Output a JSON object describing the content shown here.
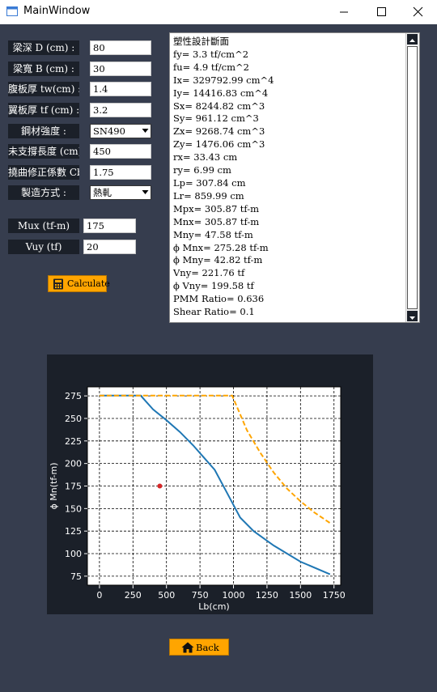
{
  "window": {
    "title": "MainWindow"
  },
  "inputs": [
    {
      "label": "梁深 D  (cm)   :",
      "value": "80"
    },
    {
      "label": "梁寬 B  (cm)   :",
      "value": "30"
    },
    {
      "label": "腹板厚 tw(cm)  :",
      "value": "1.4"
    },
    {
      "label": "翼板厚 tf (cm)  :",
      "value": "3.2"
    },
    {
      "label": "鋼材強度    :",
      "value": "SN490",
      "type": "select"
    },
    {
      "label": "未支撐長度 (cm) :",
      "value": "450"
    },
    {
      "label": "撓曲修正係數 Cb :",
      "value": "1.75"
    },
    {
      "label": "製造方式    :",
      "value": "熱軋",
      "type": "select"
    }
  ],
  "loads": [
    {
      "label": "Mux (tf-m)",
      "value": "175"
    },
    {
      "label": "Vuy (tf)",
      "value": "20"
    }
  ],
  "buttons": {
    "calculate": "Calculate",
    "back": "Back"
  },
  "results": [
    "塑性設計斷面",
    "fy= 3.3  tf/cm^2",
    "fu= 4.9  tf/cm^2",
    "Ix= 329792.99  cm^4",
    "Iy= 14416.83  cm^4",
    "Sx= 8244.82  cm^3",
    "Sy= 961.12  cm^3",
    "Zx= 9268.74  cm^3",
    "Zy= 1476.06  cm^3",
    "rx= 33.43  cm",
    "ry= 6.99  cm",
    "Lp= 307.84  cm",
    "Lr= 859.99  cm",
    "Mpx= 305.87  tf-m",
    "Mnx= 305.87  tf-m",
    "Mny= 47.58  tf-m",
    "ϕ Mnx= 275.28  tf-m",
    "ϕ Mny= 42.82  tf-m",
    "Vny= 221.76  tf",
    "ϕ Vny= 199.58  tf",
    "PMM Ratio= 0.636",
    "Shear Ratio= 0.1"
  ],
  "icons": {
    "calculate": "calculator-icon",
    "back": "home-icon",
    "app": "window-icon"
  },
  "colors": {
    "background": "#363d4e",
    "panel": "#1b2029",
    "accent": "#ffa500",
    "series_blue": "#1f77b4",
    "series_orange": "#ffa500",
    "point": "#d62728"
  },
  "chart_data": {
    "type": "line",
    "xlabel": "Lb(cm)",
    "ylabel": "ϕ Mn(tf-m)",
    "xlim": [
      -90,
      1800
    ],
    "ylim": [
      65,
      285
    ],
    "xticks": [
      0,
      250,
      500,
      750,
      1000,
      1250,
      1500,
      1750
    ],
    "yticks": [
      75,
      100,
      125,
      150,
      175,
      200,
      225,
      250,
      275
    ],
    "grid": true,
    "series": [
      {
        "color": "#1f77b4",
        "style": "solid",
        "x": [
          0,
          100,
          200,
          307.84,
          400,
          500,
          600,
          700,
          859.99,
          950,
          1050,
          1150,
          1300,
          1500,
          1720
        ],
        "y": [
          275.28,
          275.28,
          275.28,
          275.28,
          260,
          248,
          235,
          220,
          193,
          168,
          140,
          125,
          109,
          91,
          77
        ]
      },
      {
        "color": "#ffa500",
        "style": "dashed",
        "x": [
          0,
          250,
          500,
          750,
          990,
          1100,
          1200,
          1300,
          1400,
          1500,
          1600,
          1720
        ],
        "y": [
          275.28,
          275.28,
          275.28,
          275.28,
          275.28,
          237,
          212,
          190,
          172,
          158,
          146,
          134
        ]
      }
    ],
    "points": [
      {
        "x": 450,
        "y": 175,
        "color": "#d62728"
      }
    ]
  }
}
